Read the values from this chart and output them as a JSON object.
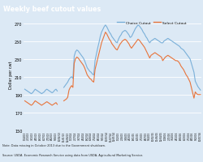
{
  "title": "Weekly beef cutout values",
  "title_bg": "#1f3864",
  "ylabel": "Dollar per cwt",
  "ylim": [
    150,
    275
  ],
  "yticks": [
    150,
    170,
    190,
    210,
    230,
    250,
    270
  ],
  "choice_color": "#7ab0d9",
  "select_color": "#e8743b",
  "plot_bg": "#dce9f5",
  "outer_bg": "#dce9f5",
  "note_text": "Note: Data missing in October 2013 due to the Government shutdown.",
  "source_text": "Source: USDA, Economic Research Service using data from USDA, Agricultural Marketing Service.",
  "legend_labels": [
    "Choice Cutout",
    "Select Cutout"
  ],
  "x_labels": [
    "1/04/13",
    "2/01/13",
    "3/01/13",
    "4/05/13",
    "5/03/13",
    "6/07/13",
    "7/05/13",
    "8/02/13",
    "9/06/13",
    "10/04/13",
    "11/01/13",
    "12/06/13",
    "1/03/14",
    "2/07/14",
    "3/07/14",
    "4/04/14",
    "5/02/14",
    "6/06/14",
    "7/04/14",
    "8/01/14",
    "9/05/14",
    "10/03/14",
    "11/07/14",
    "12/05/14",
    "1/02/15",
    "2/06/15",
    "3/06/15",
    "4/03/15",
    "5/01/15",
    "6/05/15",
    "7/03/15",
    "8/07/15",
    "9/04/15",
    "10/02/15",
    "11/06/15",
    "12/04/15",
    "1/08/16",
    "2/05/16",
    "3/04/16",
    "4/01/16",
    "5/06/16",
    "6/03/16",
    "7/01/16",
    "8/05/16",
    "9/02/16",
    "10/07/16"
  ],
  "choice_raw": [
    196,
    195,
    194,
    193,
    192,
    191,
    192,
    194,
    196,
    195,
    194,
    193,
    192,
    191,
    192,
    193,
    195,
    196,
    195,
    194,
    193,
    192,
    193,
    195,
    196,
    194,
    null,
    null,
    null,
    null,
    198,
    200,
    202,
    204,
    207,
    209,
    210,
    208,
    233,
    238,
    240,
    239,
    237,
    235,
    233,
    231,
    228,
    224,
    220,
    218,
    216,
    215,
    213,
    212,
    228,
    235,
    242,
    248,
    255,
    260,
    263,
    266,
    268,
    266,
    263,
    260,
    258,
    255,
    253,
    251,
    249,
    248,
    252,
    255,
    257,
    260,
    261,
    262,
    261,
    259,
    257,
    254,
    255,
    258,
    261,
    264,
    266,
    268,
    267,
    265,
    263,
    260,
    258,
    255,
    253,
    250,
    248,
    250,
    251,
    252,
    253,
    252,
    251,
    250,
    249,
    248,
    248,
    250,
    251,
    252,
    253,
    252,
    251,
    250,
    249,
    248,
    247,
    246,
    245,
    244,
    242,
    241,
    240,
    238,
    236,
    234,
    232,
    230,
    225,
    220,
    215,
    205,
    202,
    199,
    197,
    195
  ],
  "select_raw": [
    183,
    182,
    181,
    180,
    179,
    178,
    179,
    181,
    183,
    182,
    181,
    180,
    179,
    178,
    179,
    180,
    181,
    182,
    181,
    180,
    179,
    178,
    179,
    180,
    181,
    179,
    null,
    null,
    null,
    null,
    183,
    184,
    185,
    187,
    195,
    198,
    200,
    198,
    225,
    230,
    232,
    231,
    229,
    227,
    225,
    223,
    220,
    216,
    212,
    210,
    208,
    207,
    205,
    204,
    218,
    224,
    230,
    236,
    242,
    248,
    252,
    256,
    260,
    258,
    255,
    252,
    250,
    247,
    245,
    243,
    241,
    240,
    243,
    246,
    248,
    250,
    251,
    252,
    251,
    249,
    247,
    244,
    242,
    244,
    246,
    248,
    250,
    252,
    251,
    249,
    247,
    245,
    243,
    240,
    237,
    234,
    231,
    234,
    235,
    236,
    237,
    236,
    235,
    234,
    233,
    232,
    228,
    230,
    232,
    233,
    234,
    233,
    232,
    231,
    230,
    229,
    228,
    228,
    227,
    225,
    222,
    220,
    218,
    215,
    212,
    210,
    207,
    204,
    198,
    192,
    186,
    193,
    191,
    190,
    190,
    190
  ]
}
